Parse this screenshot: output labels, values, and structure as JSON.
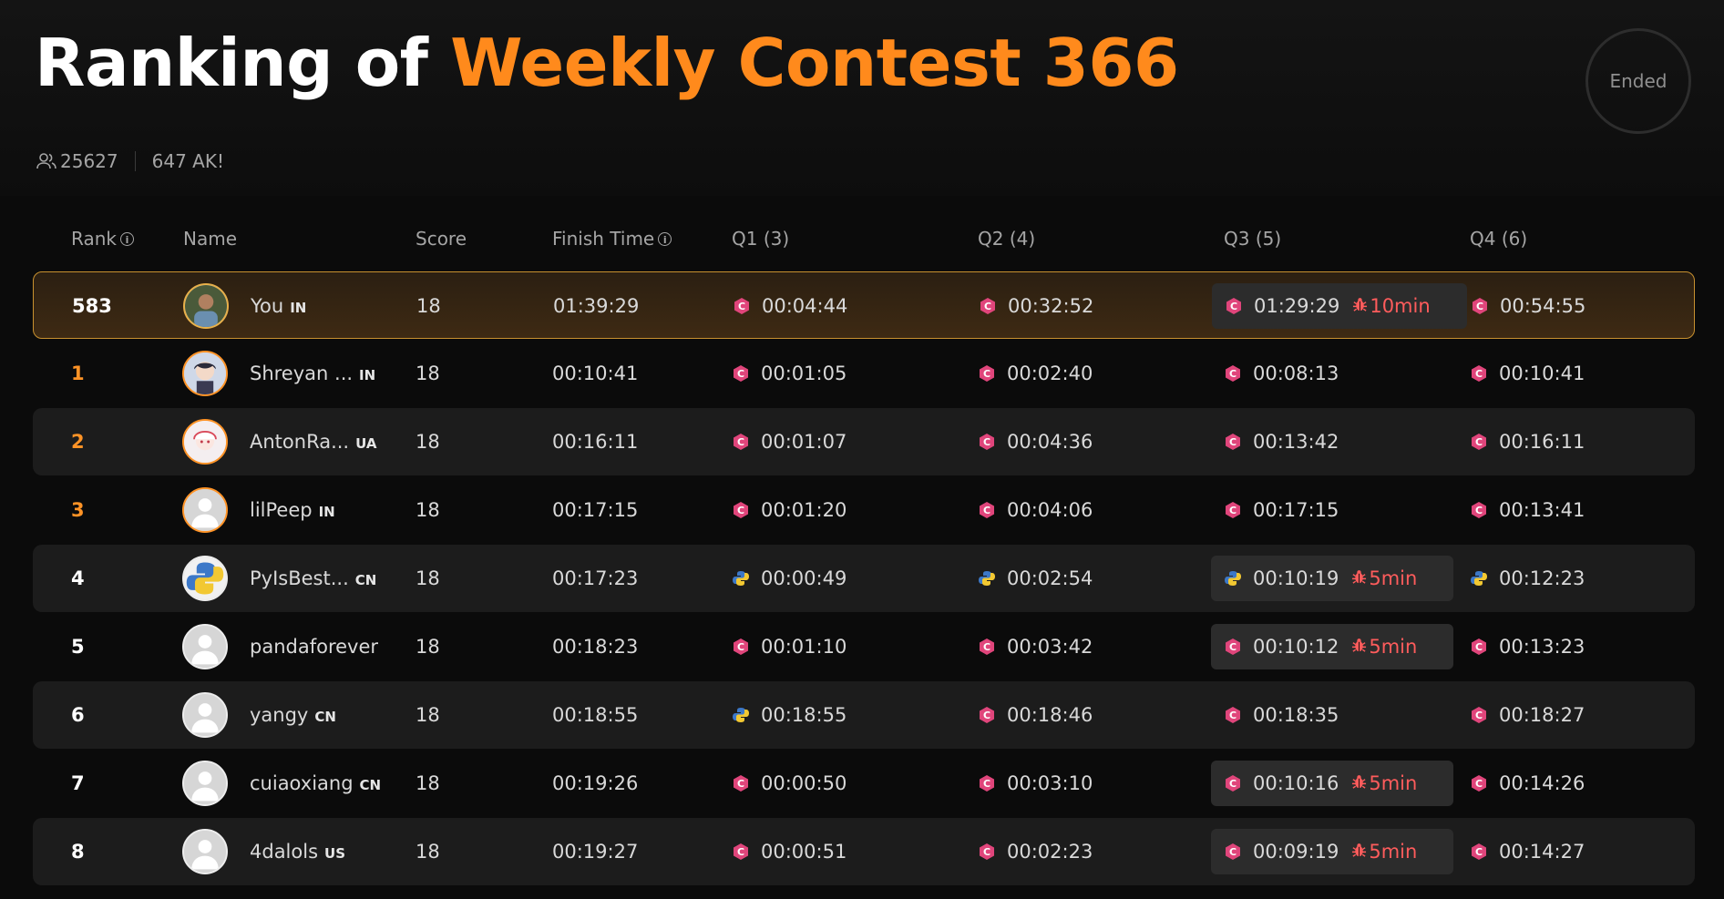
{
  "header": {
    "title_prefix": "Ranking of",
    "title_contest": "Weekly Contest 366",
    "status": "Ended",
    "participants": "25627",
    "ak": "647 AK!"
  },
  "table": {
    "columns": [
      "Rank",
      "Name",
      "Score",
      "Finish Time",
      "Q1 (3)",
      "Q2 (4)",
      "Q3 (5)",
      "Q4 (6)"
    ],
    "rows": [
      {
        "rank": "583",
        "name": "You",
        "country": "IN",
        "score": "18",
        "finish": "01:39:29",
        "q": [
          {
            "t": "00:04:44",
            "lang": "cpp"
          },
          {
            "t": "00:32:52",
            "lang": "cpp"
          },
          {
            "t": "01:29:29",
            "lang": "cpp",
            "pen": "10min"
          },
          {
            "t": "00:54:55",
            "lang": "cpp"
          }
        ]
      },
      {
        "rank": "1",
        "name": "Shreyan ...",
        "country": "IN",
        "score": "18",
        "finish": "00:10:41",
        "q": [
          {
            "t": "00:01:05",
            "lang": "cpp"
          },
          {
            "t": "00:02:40",
            "lang": "cpp"
          },
          {
            "t": "00:08:13",
            "lang": "cpp"
          },
          {
            "t": "00:10:41",
            "lang": "cpp"
          }
        ]
      },
      {
        "rank": "2",
        "name": "AntonRa...",
        "country": "UA",
        "score": "18",
        "finish": "00:16:11",
        "q": [
          {
            "t": "00:01:07",
            "lang": "cpp"
          },
          {
            "t": "00:04:36",
            "lang": "cpp"
          },
          {
            "t": "00:13:42",
            "lang": "cpp"
          },
          {
            "t": "00:16:11",
            "lang": "cpp"
          }
        ]
      },
      {
        "rank": "3",
        "name": "lilPeep",
        "country": "IN",
        "score": "18",
        "finish": "00:17:15",
        "q": [
          {
            "t": "00:01:20",
            "lang": "cpp"
          },
          {
            "t": "00:04:06",
            "lang": "cpp"
          },
          {
            "t": "00:17:15",
            "lang": "cpp"
          },
          {
            "t": "00:13:41",
            "lang": "cpp"
          }
        ]
      },
      {
        "rank": "4",
        "name": "PyIsBest...",
        "country": "CN",
        "score": "18",
        "finish": "00:17:23",
        "q": [
          {
            "t": "00:00:49",
            "lang": "py"
          },
          {
            "t": "00:02:54",
            "lang": "py"
          },
          {
            "t": "00:10:19",
            "lang": "py",
            "pen": "5min"
          },
          {
            "t": "00:12:23",
            "lang": "py"
          }
        ]
      },
      {
        "rank": "5",
        "name": "pandaforever",
        "country": "",
        "score": "18",
        "finish": "00:18:23",
        "q": [
          {
            "t": "00:01:10",
            "lang": "cpp"
          },
          {
            "t": "00:03:42",
            "lang": "cpp"
          },
          {
            "t": "00:10:12",
            "lang": "cpp",
            "pen": "5min"
          },
          {
            "t": "00:13:23",
            "lang": "cpp"
          }
        ]
      },
      {
        "rank": "6",
        "name": "yangy",
        "country": "CN",
        "score": "18",
        "finish": "00:18:55",
        "q": [
          {
            "t": "00:18:55",
            "lang": "py"
          },
          {
            "t": "00:18:46",
            "lang": "cpp"
          },
          {
            "t": "00:18:35",
            "lang": "cpp"
          },
          {
            "t": "00:18:27",
            "lang": "cpp"
          }
        ]
      },
      {
        "rank": "7",
        "name": "cuiaoxiang",
        "country": "CN",
        "score": "18",
        "finish": "00:19:26",
        "q": [
          {
            "t": "00:00:50",
            "lang": "cpp"
          },
          {
            "t": "00:03:10",
            "lang": "cpp"
          },
          {
            "t": "00:10:16",
            "lang": "cpp",
            "pen": "5min"
          },
          {
            "t": "00:14:26",
            "lang": "cpp"
          }
        ]
      },
      {
        "rank": "8",
        "name": "4dalols",
        "country": "US",
        "score": "18",
        "finish": "00:19:27",
        "q": [
          {
            "t": "00:00:51",
            "lang": "cpp"
          },
          {
            "t": "00:02:23",
            "lang": "cpp"
          },
          {
            "t": "00:09:19",
            "lang": "cpp",
            "pen": "5min"
          },
          {
            "t": "00:14:27",
            "lang": "cpp"
          }
        ]
      }
    ]
  },
  "icons": {
    "participants": "users-icon",
    "info": "info-icon",
    "cpp": "cpp-language-icon",
    "python": "python-language-icon",
    "penalty": "bug-icon"
  },
  "colors": {
    "accent": "#ff8a1c",
    "rank_top": "#ff9326",
    "penalty": "#ff5c5c",
    "highlight_border": "#c8912f"
  }
}
